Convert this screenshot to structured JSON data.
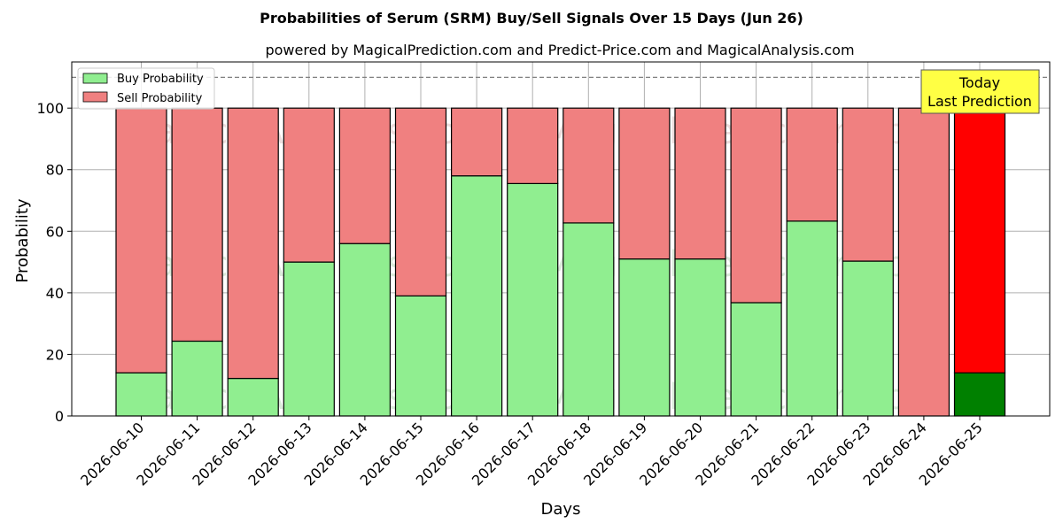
{
  "chart_data": {
    "type": "bar",
    "title": "Probabilities of Serum (SRM) Buy/Sell Signals Over 15 Days (Jun 26)",
    "subtitle": "powered by MagicalPrediction.com and Predict-Price.com and MagicalAnalysis.com",
    "xlabel": "Days",
    "ylabel": "Probability",
    "ylim": [
      0,
      115
    ],
    "yticks": [
      0,
      20,
      40,
      60,
      80,
      100
    ],
    "reference_line": 110,
    "grid": true,
    "legend_position": "top-left",
    "categories": [
      "2026-06-10",
      "2026-06-11",
      "2026-06-12",
      "2026-06-13",
      "2026-06-14",
      "2026-06-15",
      "2026-06-16",
      "2026-06-17",
      "2026-06-18",
      "2026-06-19",
      "2026-06-20",
      "2026-06-21",
      "2026-06-22",
      "2026-06-23",
      "2026-06-24",
      "2026-06-25"
    ],
    "series": [
      {
        "name": "Buy Probability",
        "color": "#90ee90",
        "values": [
          14,
          24.3,
          12.2,
          50,
          56,
          39,
          78,
          75.5,
          62.7,
          51,
          51,
          36.8,
          63.3,
          50.3,
          0,
          14
        ]
      },
      {
        "name": "Sell Probability",
        "color": "#f08080",
        "values": [
          86,
          75.7,
          87.8,
          50,
          44,
          61,
          22,
          24.5,
          37.3,
          49,
          49,
          63.2,
          36.7,
          49.7,
          100,
          86
        ]
      }
    ],
    "today_colors": {
      "buy": "#008000",
      "sell": "#ff0000"
    },
    "today_annotation": {
      "line1": "Today",
      "line2": "Last Prediction",
      "box_color": "#ffff44"
    },
    "watermarks": [
      "MagicalAnalysis.com",
      "MagicalPrediction.com"
    ]
  }
}
